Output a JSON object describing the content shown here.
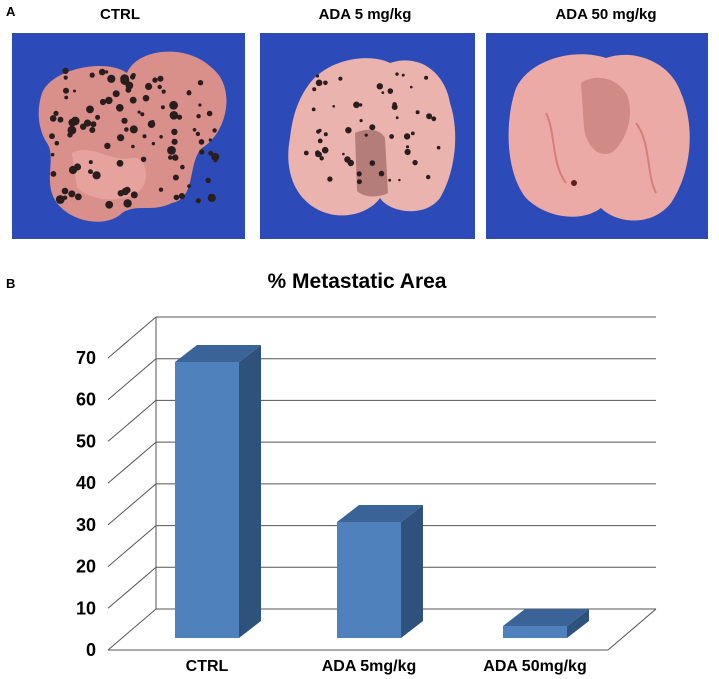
{
  "panel_a": {
    "letter": "A",
    "photos": [
      {
        "label": "CTRL",
        "subject": "lung-heavy-metastasis"
      },
      {
        "label": "ADA 5 mg/kg",
        "subject": "lung-moderate-metastasis"
      },
      {
        "label": "ADA 50 mg/kg",
        "subject": "lung-minimal-metastasis"
      }
    ],
    "colors": {
      "background": "#2c4bb8",
      "tissue": "#e9a9a2",
      "nodule": "#2a1d1e"
    }
  },
  "panel_b": {
    "letter": "B"
  },
  "chart_data": {
    "type": "bar",
    "title": "% Metastatic Area",
    "categories": [
      "CTRL",
      "ADA 5mg/kg",
      "ADA 50mg/kg"
    ],
    "values": [
      69,
      29,
      3
    ],
    "ylim": [
      0,
      70
    ],
    "yticks": [
      0,
      10,
      20,
      30,
      40,
      50,
      60,
      70
    ],
    "xlabel": "",
    "ylabel": "",
    "style": "3d-column",
    "grid": true,
    "legend": "none",
    "colors": {
      "bar_front": "#4f81bd",
      "bar_side": "#2f527c",
      "bar_top": "#3a6397",
      "grid": "#555555"
    }
  }
}
